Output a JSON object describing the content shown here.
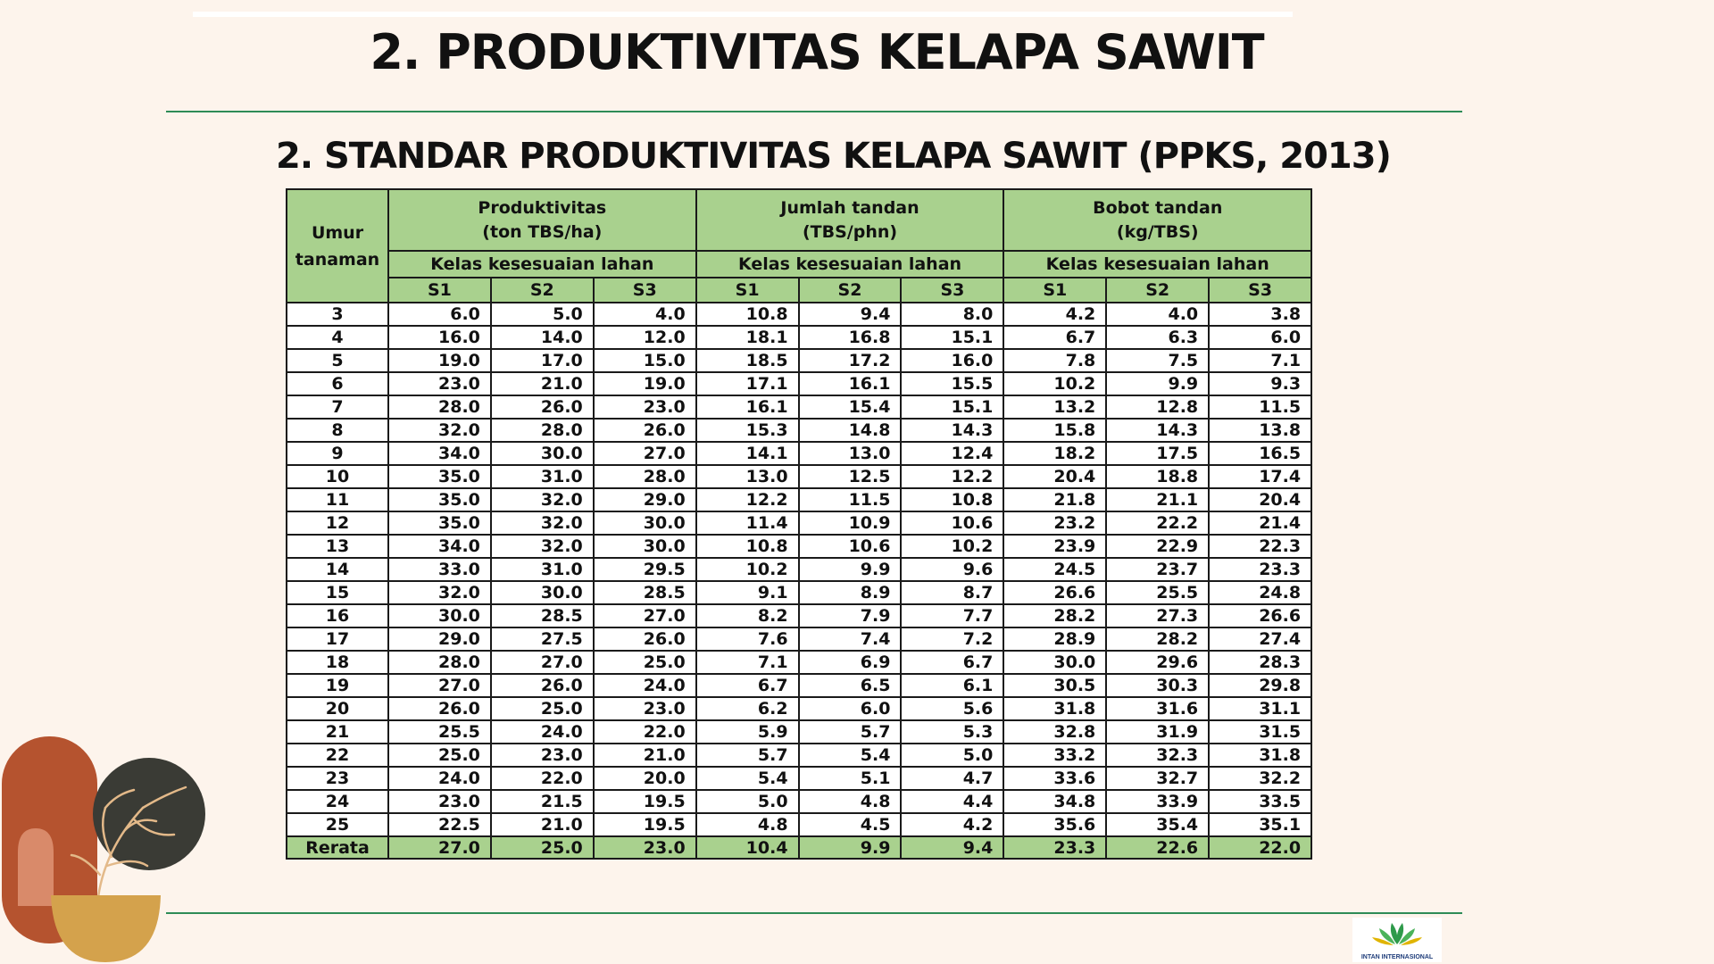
{
  "title": "2. PRODUKTIVITAS KELAPA SAWIT",
  "subtitle": "2.  STANDAR PRODUKTIVITAS KELAPA SAWIT (PPKS, 2013)",
  "table": {
    "age_header": [
      "Umur",
      "tanaman"
    ],
    "groups": [
      {
        "line1": "Produktivitas",
        "line2": "(ton TBS/ha)"
      },
      {
        "line1": "Jumlah tandan",
        "line2": "(TBS/phn)"
      },
      {
        "line1": "Bobot tandan",
        "line2": "(kg/TBS)"
      }
    ],
    "class_label": "Kelas kesesuaian lahan",
    "classes": [
      "S1",
      "S2",
      "S3"
    ],
    "rows": [
      [
        "3",
        "6.0",
        "5.0",
        "4.0",
        "10.8",
        "9.4",
        "8.0",
        "4.2",
        "4.0",
        "3.8"
      ],
      [
        "4",
        "16.0",
        "14.0",
        "12.0",
        "18.1",
        "16.8",
        "15.1",
        "6.7",
        "6.3",
        "6.0"
      ],
      [
        "5",
        "19.0",
        "17.0",
        "15.0",
        "18.5",
        "17.2",
        "16.0",
        "7.8",
        "7.5",
        "7.1"
      ],
      [
        "6",
        "23.0",
        "21.0",
        "19.0",
        "17.1",
        "16.1",
        "15.5",
        "10.2",
        "9.9",
        "9.3"
      ],
      [
        "7",
        "28.0",
        "26.0",
        "23.0",
        "16.1",
        "15.4",
        "15.1",
        "13.2",
        "12.8",
        "11.5"
      ],
      [
        "8",
        "32.0",
        "28.0",
        "26.0",
        "15.3",
        "14.8",
        "14.3",
        "15.8",
        "14.3",
        "13.8"
      ],
      [
        "9",
        "34.0",
        "30.0",
        "27.0",
        "14.1",
        "13.0",
        "12.4",
        "18.2",
        "17.5",
        "16.5"
      ],
      [
        "10",
        "35.0",
        "31.0",
        "28.0",
        "13.0",
        "12.5",
        "12.2",
        "20.4",
        "18.8",
        "17.4"
      ],
      [
        "11",
        "35.0",
        "32.0",
        "29.0",
        "12.2",
        "11.5",
        "10.8",
        "21.8",
        "21.1",
        "20.4"
      ],
      [
        "12",
        "35.0",
        "32.0",
        "30.0",
        "11.4",
        "10.9",
        "10.6",
        "23.2",
        "22.2",
        "21.4"
      ],
      [
        "13",
        "34.0",
        "32.0",
        "30.0",
        "10.8",
        "10.6",
        "10.2",
        "23.9",
        "22.9",
        "22.3"
      ],
      [
        "14",
        "33.0",
        "31.0",
        "29.5",
        "10.2",
        "9.9",
        "9.6",
        "24.5",
        "23.7",
        "23.3"
      ],
      [
        "15",
        "32.0",
        "30.0",
        "28.5",
        "9.1",
        "8.9",
        "8.7",
        "26.6",
        "25.5",
        "24.8"
      ],
      [
        "16",
        "30.0",
        "28.5",
        "27.0",
        "8.2",
        "7.9",
        "7.7",
        "28.2",
        "27.3",
        "26.6"
      ],
      [
        "17",
        "29.0",
        "27.5",
        "26.0",
        "7.6",
        "7.4",
        "7.2",
        "28.9",
        "28.2",
        "27.4"
      ],
      [
        "18",
        "28.0",
        "27.0",
        "25.0",
        "7.1",
        "6.9",
        "6.7",
        "30.0",
        "29.6",
        "28.3"
      ],
      [
        "19",
        "27.0",
        "26.0",
        "24.0",
        "6.7",
        "6.5",
        "6.1",
        "30.5",
        "30.3",
        "29.8"
      ],
      [
        "20",
        "26.0",
        "25.0",
        "23.0",
        "6.2",
        "6.0",
        "5.6",
        "31.8",
        "31.6",
        "31.1"
      ],
      [
        "21",
        "25.5",
        "24.0",
        "22.0",
        "5.9",
        "5.7",
        "5.3",
        "32.8",
        "31.9",
        "31.5"
      ],
      [
        "22",
        "25.0",
        "23.0",
        "21.0",
        "5.7",
        "5.4",
        "5.0",
        "33.2",
        "32.3",
        "31.8"
      ],
      [
        "23",
        "24.0",
        "22.0",
        "20.0",
        "5.4",
        "5.1",
        "4.7",
        "33.6",
        "32.7",
        "32.2"
      ],
      [
        "24",
        "23.0",
        "21.5",
        "19.5",
        "5.0",
        "4.8",
        "4.4",
        "34.8",
        "33.9",
        "33.5"
      ],
      [
        "25",
        "22.5",
        "21.0",
        "19.5",
        "4.8",
        "4.5",
        "4.2",
        "35.6",
        "35.4",
        "35.1"
      ]
    ],
    "footer": [
      "Rerata",
      "27.0",
      "25.0",
      "23.0",
      "10.4",
      "9.9",
      "9.4",
      "23.3",
      "22.6",
      "22.0"
    ]
  },
  "logo": {
    "text": "INTAN INTERNASIONAL"
  },
  "colors": {
    "background": "#fdf4ec",
    "header_fill": "#a9d18e",
    "rule": "#2e8b57",
    "deco_terracotta": "#b5532f",
    "deco_dark": "#3a3b35",
    "deco_mustard": "#d4a24c"
  }
}
